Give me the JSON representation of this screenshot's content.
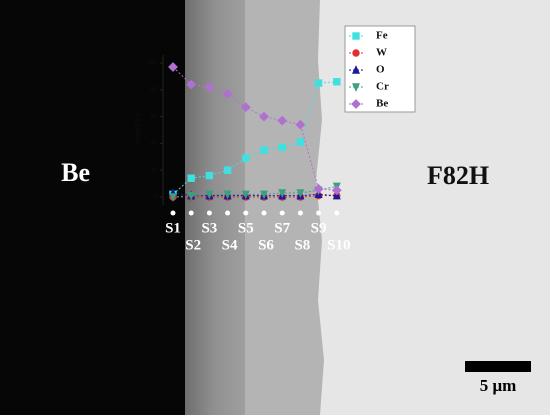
{
  "chart_data": {
    "type": "line",
    "y_label": "Atom (%)",
    "categories": [
      "S1",
      "S2",
      "S3",
      "S4",
      "S5",
      "S6",
      "S7",
      "S8",
      "S9",
      "S10"
    ],
    "series": [
      {
        "name": "Fe",
        "color": "#3fe0e0",
        "marker": "square",
        "values": [
          2,
          14,
          16,
          20,
          29,
          35,
          37,
          41,
          85,
          86
        ]
      },
      {
        "name": "W",
        "color": "#e03030",
        "marker": "circle",
        "values": [
          0,
          0,
          0,
          0,
          0,
          0,
          0,
          0,
          1,
          1
        ]
      },
      {
        "name": "O",
        "color": "#1a1a9a",
        "marker": "triangle-up",
        "values": [
          3,
          1,
          1,
          1,
          1,
          1,
          1,
          1,
          2,
          1
        ]
      },
      {
        "name": "Cr",
        "color": "#3aa080",
        "marker": "triangle-down",
        "values": [
          0,
          1,
          2,
          2,
          2,
          2,
          3,
          3,
          5,
          8
        ]
      },
      {
        "name": "Be",
        "color": "#b070d0",
        "marker": "diamond",
        "values": [
          97,
          84,
          82,
          77,
          67,
          60,
          57,
          54,
          6,
          5
        ]
      }
    ],
    "ylim": [
      -5,
      105
    ],
    "yticks": [
      0,
      20,
      40,
      60,
      80,
      100
    ],
    "annotations": [
      "Be",
      "F82H",
      "5 μm"
    ]
  }
}
